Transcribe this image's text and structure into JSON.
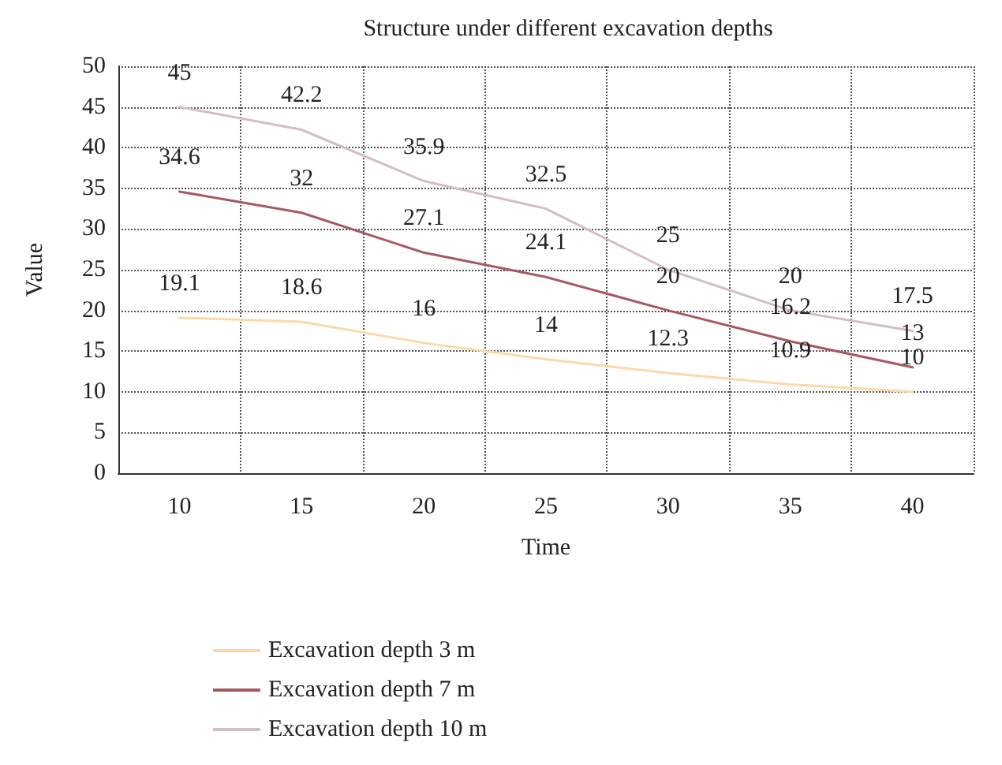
{
  "chart_data": {
    "type": "line",
    "title": "Structure under different excavation depths",
    "xlabel": "Time",
    "ylabel": "Value",
    "categories": [
      "10",
      "15",
      "20",
      "25",
      "30",
      "35",
      "40"
    ],
    "series": [
      {
        "name": "Excavation depth 3 m",
        "color": "#fdd9a8",
        "values": [
          19.1,
          18.6,
          16,
          14,
          12.3,
          10.9,
          10
        ]
      },
      {
        "name": "Excavation depth 7 m",
        "color": "#a8585e",
        "values": [
          34.6,
          32,
          27.1,
          24.1,
          20,
          16.2,
          13
        ]
      },
      {
        "name": "Excavation depth 10 m",
        "color": "#d4bcc9",
        "values": [
          45,
          42.2,
          35.9,
          32.5,
          25,
          20,
          17.5
        ]
      }
    ],
    "ylim": [
      0,
      50
    ],
    "yticks": [
      0,
      5,
      10,
      15,
      20,
      25,
      30,
      35,
      40,
      45,
      50
    ],
    "grid": true,
    "legend": "bottom",
    "marker": "none",
    "line_style": "solid",
    "data_labels": true
  }
}
